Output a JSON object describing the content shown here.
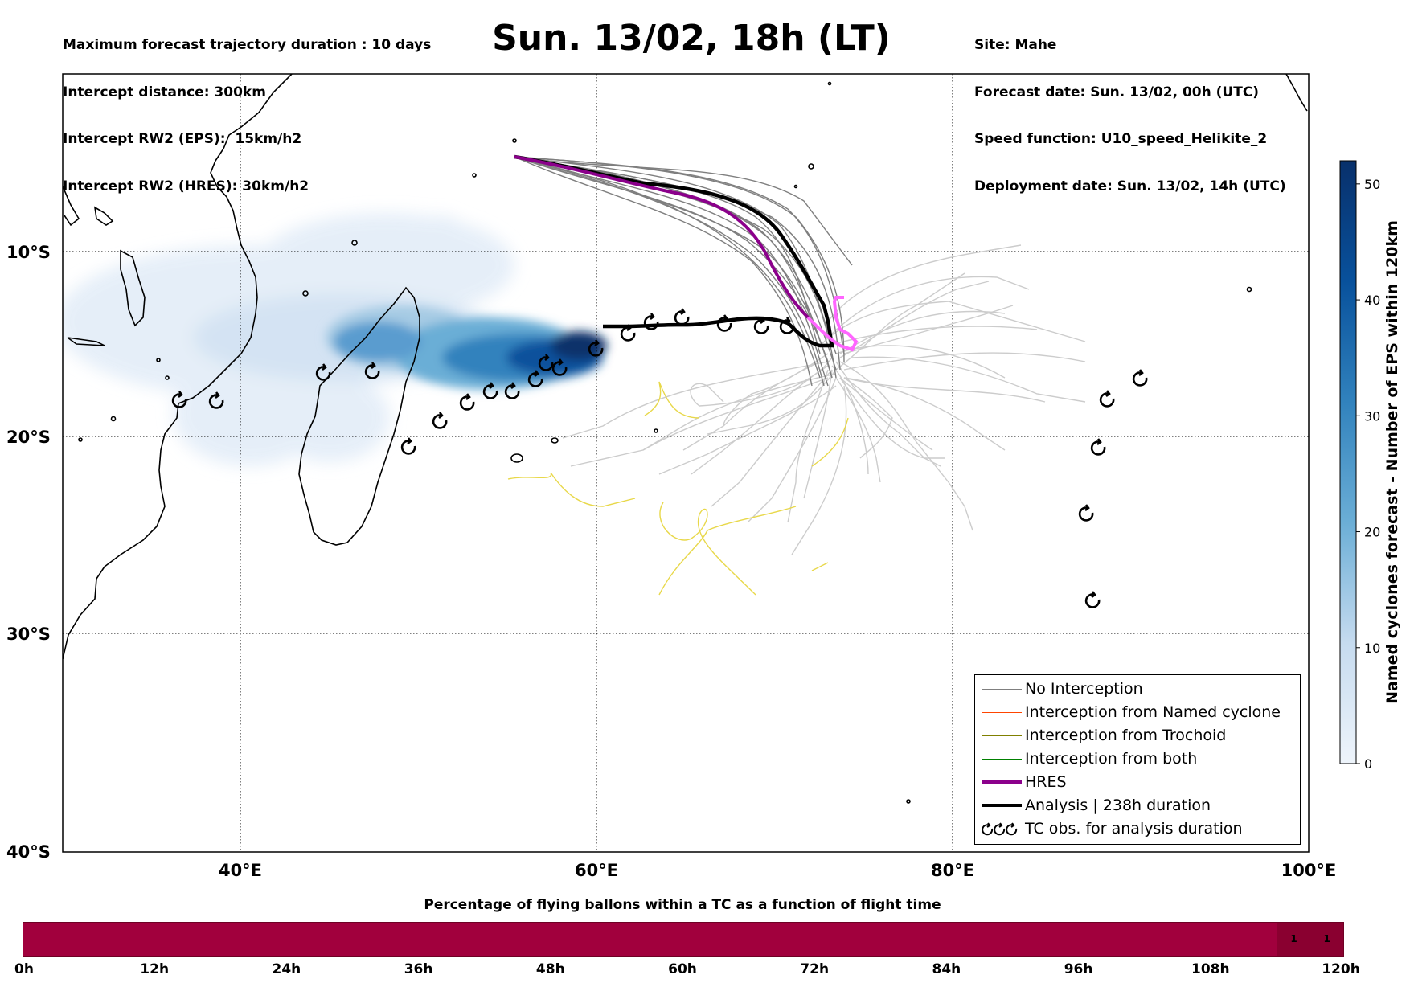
{
  "header_left": [
    "Maximum forecast trajectory duration : 10 days",
    "Intercept distance: 300km",
    "Intercept RW2 (EPS):  15km/h2",
    "Intercept RW2 (HRES): 30km/h2"
  ],
  "title": "Sun. 13/02, 18h (LT)",
  "header_right": [
    "Site: Mahe",
    "Forecast date: Sun. 13/02, 00h (UTC)",
    "Speed function: U10_speed_Helikite_2",
    "Deployment date: Sun. 13/02, 14h (UTC)"
  ],
  "map": {
    "lat_labels": [
      "10°S",
      "20°S",
      "30°S",
      "40°S"
    ],
    "lon_labels": [
      "40°E",
      "60°E",
      "80°E",
      "100°E"
    ],
    "lon_range": [
      30,
      100
    ],
    "lat_range": [
      0,
      -40
    ],
    "gridlines": true,
    "colors": {
      "no_interception": "#7f7f7f",
      "light_track": "#cccccc",
      "named_cyclone": "#ff4500",
      "trochoid": "#808000",
      "both": "#008000",
      "hres": "#8b008b",
      "hres_tail": "#ff66ff",
      "analysis": "#000000",
      "yellow_track": "#e8d84a"
    }
  },
  "colorbar": {
    "label": "Named cyclones forecast - Number of EPS within 120km",
    "ticks": [
      "0",
      "10",
      "20",
      "30",
      "40",
      "50"
    ],
    "range": [
      0,
      52
    ]
  },
  "legend": {
    "items": [
      {
        "label": "No Interception",
        "color": "#7f7f7f",
        "width": 1
      },
      {
        "label": "Interception from Named cyclone",
        "color": "#ff4500",
        "width": 1
      },
      {
        "label": "Interception from Trochoid",
        "color": "#808000",
        "width": 1
      },
      {
        "label": "Interception from both",
        "color": "#008000",
        "width": 1
      },
      {
        "label": "HRES",
        "color": "#8b008b",
        "width": 4
      },
      {
        "label": "Analysis | 238h duration",
        "color": "#000000",
        "width": 4
      },
      {
        "label": "TC obs. for analysis duration",
        "icon": "tc-obs"
      }
    ]
  },
  "flight_bar": {
    "title": "Percentage of flying ballons within a TC as a function of flight time",
    "ticks": [
      "0h",
      "12h",
      "24h",
      "36h",
      "48h",
      "60h",
      "72h",
      "84h",
      "96h",
      "108h",
      "120h"
    ],
    "cells": [
      {
        "label": "1",
        "from_h": 114,
        "to_h": 117
      },
      {
        "label": "1",
        "from_h": 117,
        "to_h": 120
      }
    ],
    "color": "#a1003d"
  }
}
